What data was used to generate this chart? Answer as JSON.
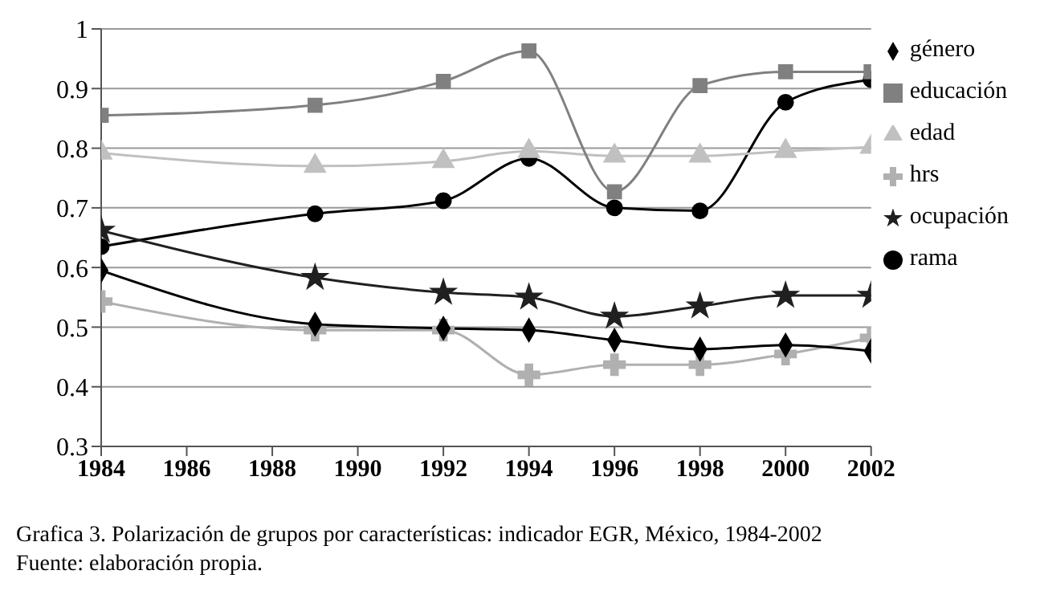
{
  "chart_data": {
    "type": "line",
    "x": [
      1984,
      1989,
      1992,
      1994,
      1996,
      1998,
      2000,
      2002
    ],
    "series": [
      {
        "name": "género",
        "color": "#000000",
        "marker": "diamond",
        "values": [
          0.595,
          0.505,
          0.498,
          0.495,
          0.478,
          0.463,
          0.47,
          0.46
        ]
      },
      {
        "name": "educación",
        "color": "#808080",
        "marker": "square",
        "values": [
          0.855,
          0.872,
          0.912,
          0.963,
          0.727,
          0.905,
          0.928,
          0.928
        ]
      },
      {
        "name": "edad",
        "color": "#c0c0c0",
        "marker": "triangle",
        "values": [
          0.792,
          0.77,
          0.778,
          0.795,
          0.787,
          0.787,
          0.795,
          0.802
        ]
      },
      {
        "name": "hrs",
        "color": "#b0b0b0",
        "marker": "cross",
        "values": [
          0.543,
          0.495,
          0.495,
          0.42,
          0.437,
          0.437,
          0.455,
          0.482
        ]
      },
      {
        "name": "ocupación",
        "color": "#202020",
        "marker": "star",
        "values": [
          0.662,
          0.583,
          0.558,
          0.55,
          0.518,
          0.535,
          0.553,
          0.553
        ]
      },
      {
        "name": "rama",
        "color": "#000000",
        "marker": "circle",
        "values": [
          0.635,
          0.69,
          0.712,
          0.783,
          0.7,
          0.695,
          0.877,
          0.915
        ]
      }
    ],
    "xlim": [
      1984,
      2002
    ],
    "xticks": [
      1984,
      1986,
      1988,
      1990,
      1992,
      1994,
      1996,
      1998,
      2000,
      2002
    ],
    "ylim": [
      0.3,
      1
    ],
    "yticks": [
      0.3,
      0.4,
      0.5,
      0.6,
      0.7,
      0.8,
      0.9,
      1
    ],
    "grid": "y",
    "legend": "right",
    "annotations": [
      "Grafica 3. Polarización de grupos por características: indicador EGR, México, 1984-2002",
      "Fuente: elaboración propia."
    ]
  }
}
